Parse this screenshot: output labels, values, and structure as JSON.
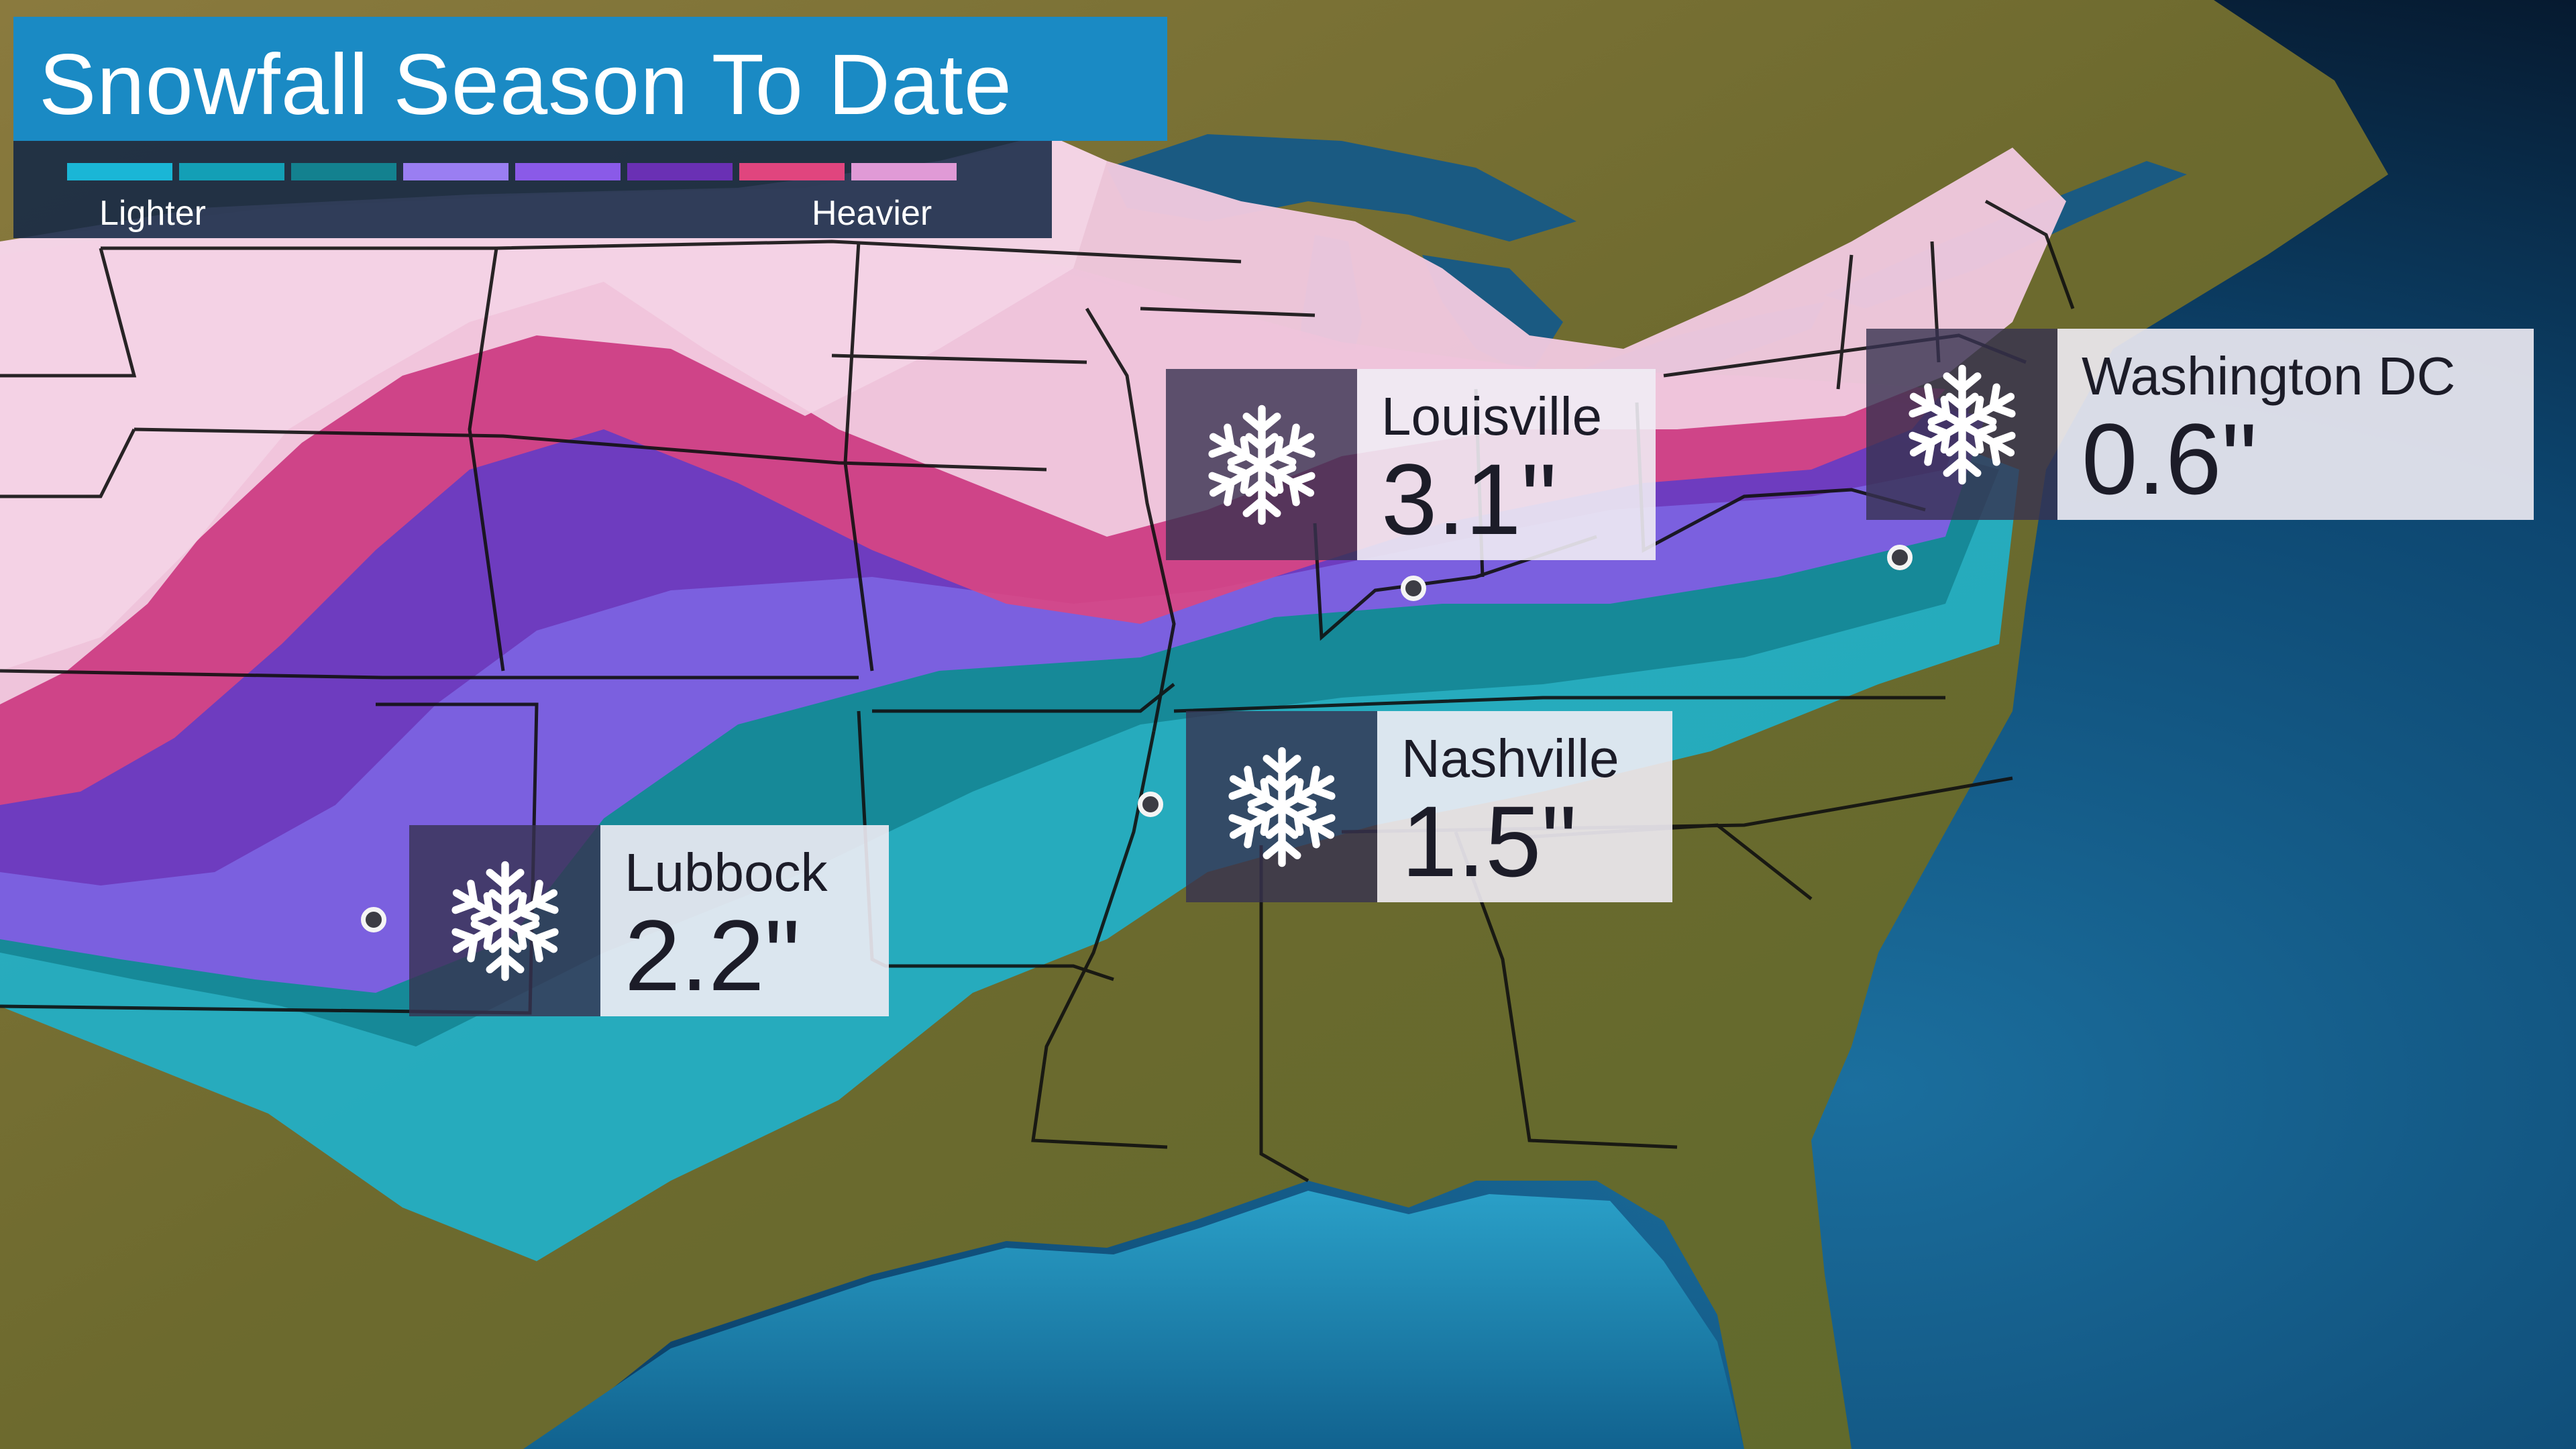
{
  "title": "Snowfall Season To Date",
  "legend": {
    "low_label": "Lighter",
    "high_label": "Heavier",
    "colors": [
      "#1ab6d6",
      "#139fb6",
      "#13818f",
      "#9a7ef2",
      "#8a5ae8",
      "#6a30b4",
      "#e0457e",
      "#e09ad6"
    ]
  },
  "locations": [
    {
      "city": "Louisville",
      "amount": "3.1\"",
      "icon": "snowflake-icon"
    },
    {
      "city": "Washington DC",
      "amount": "0.6\"",
      "icon": "snowflake-icon"
    },
    {
      "city": "Nashville",
      "amount": "1.5\"",
      "icon": "snowflake-icon"
    },
    {
      "city": "Lubbock",
      "amount": "2.2\"",
      "icon": "snowflake-icon"
    }
  ],
  "colors": {
    "ocean": "#0e4f7a",
    "land": "#7a6a34",
    "snow_light": "#f0c8de",
    "title_bg": "#1a8ac4"
  }
}
